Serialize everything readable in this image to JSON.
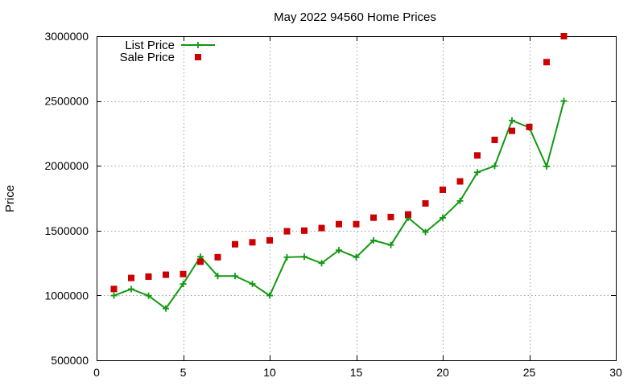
{
  "chart_data": {
    "type": "line",
    "title": "May 2022 94560 Home Prices",
    "xlabel": "",
    "ylabel": "Price",
    "xlim": [
      0,
      30
    ],
    "ylim": [
      500000,
      3000000
    ],
    "xticks": [
      "0",
      "5",
      "10",
      "15",
      "20",
      "25",
      "30"
    ],
    "yticks": [
      "500000",
      "1000000",
      "1500000",
      "2000000",
      "2500000",
      "3000000"
    ],
    "grid": true,
    "legend_position": "top-left",
    "series": [
      {
        "name": "List Price",
        "style": "line-with-plus-markers",
        "color": "#119911",
        "x": [
          1,
          2,
          3,
          4,
          5,
          6,
          7,
          8,
          9,
          10,
          11,
          12,
          13,
          14,
          15,
          16,
          17,
          18,
          19,
          20,
          21,
          22,
          23,
          24,
          25,
          26,
          27
        ],
        "y": [
          999000,
          1049000,
          998000,
          899000,
          1089000,
          1299000,
          1150000,
          1150000,
          1089000,
          999000,
          1295000,
          1299000,
          1249000,
          1349000,
          1295000,
          1425000,
          1389000,
          1599000,
          1489000,
          1599000,
          1729000,
          1950000,
          1999000,
          2350000,
          2295000,
          1995000,
          2500000
        ]
      },
      {
        "name": "Sale Price",
        "style": "square-markers",
        "color": "#cc0000",
        "x": [
          1,
          2,
          3,
          4,
          5,
          6,
          7,
          8,
          9,
          10,
          11,
          12,
          13,
          14,
          15,
          16,
          17,
          18,
          19,
          20,
          21,
          22,
          23,
          24,
          25,
          26,
          27
        ],
        "y": [
          1050000,
          1135000,
          1145000,
          1160000,
          1165000,
          1260000,
          1295000,
          1395000,
          1410000,
          1425000,
          1495000,
          1500000,
          1520000,
          1550000,
          1550000,
          1600000,
          1605000,
          1625000,
          1710000,
          1815000,
          1880000,
          2080000,
          2200000,
          2270000,
          2300000,
          2800000,
          3000000
        ]
      }
    ]
  }
}
